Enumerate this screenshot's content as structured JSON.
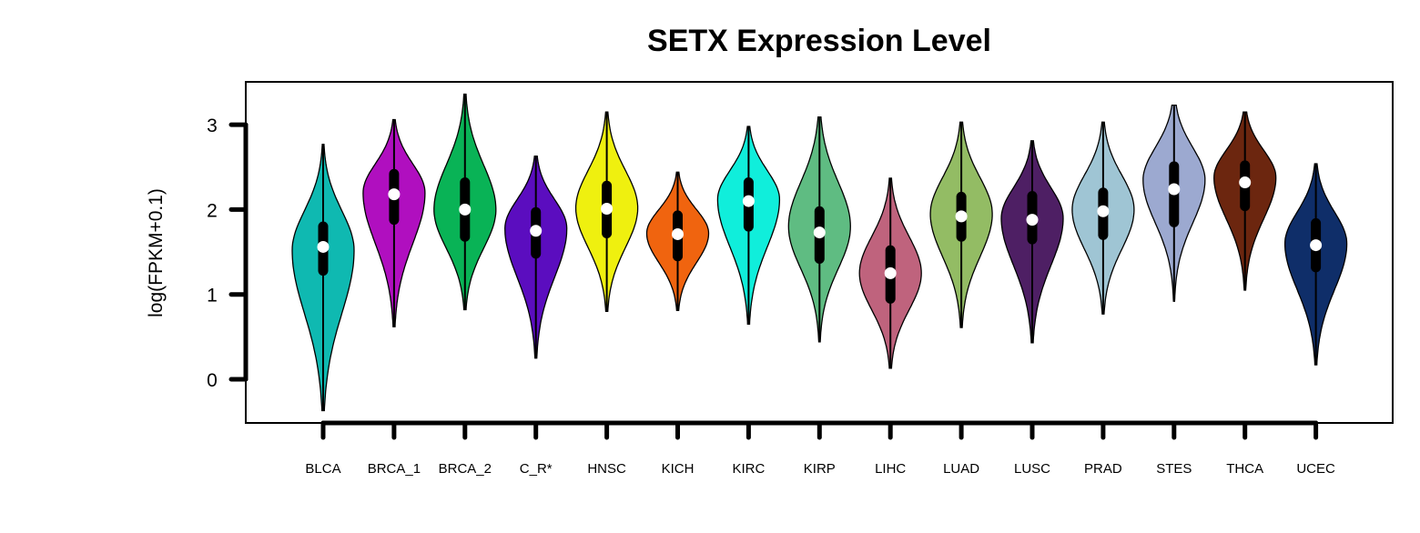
{
  "chart_data": {
    "type": "violin",
    "title": "SETX Expression Level",
    "xlabel": "",
    "ylabel": "log(FPKM+0.1)",
    "ylim": [
      -0.5,
      3.5
    ],
    "yticks": [
      "0",
      "1",
      "2",
      "3"
    ],
    "grid": false,
    "legend": "none",
    "series": [
      {
        "category": "BLCA",
        "color": "#0FB9B1",
        "min": -0.37,
        "q1": 1.28,
        "median": 1.56,
        "q3": 1.8,
        "max": 2.77,
        "mode": 1.52
      },
      {
        "category": "BRCA_1",
        "color": "#B00FBF",
        "min": 0.62,
        "q1": 1.88,
        "median": 2.18,
        "q3": 2.42,
        "max": 3.06,
        "mode": 2.2
      },
      {
        "category": "BRCA_2",
        "color": "#09B356",
        "min": 0.82,
        "q1": 1.68,
        "median": 2.0,
        "q3": 2.32,
        "max": 3.36,
        "mode": 2.0
      },
      {
        "category": "C_R*",
        "color": "#5B0DBF",
        "min": 0.25,
        "q1": 1.48,
        "median": 1.75,
        "q3": 1.97,
        "max": 2.63,
        "mode": 1.78
      },
      {
        "category": "HNSC",
        "color": "#EFF00F",
        "min": 0.8,
        "q1": 1.72,
        "median": 2.01,
        "q3": 2.28,
        "max": 3.15,
        "mode": 2.02
      },
      {
        "category": "KICH",
        "color": "#F0640F",
        "min": 0.81,
        "q1": 1.45,
        "median": 1.71,
        "q3": 1.93,
        "max": 2.44,
        "mode": 1.72
      },
      {
        "category": "KIRC",
        "color": "#10EEDB",
        "min": 0.65,
        "q1": 1.8,
        "median": 2.1,
        "q3": 2.32,
        "max": 2.98,
        "mode": 2.12
      },
      {
        "category": "KIRP",
        "color": "#5FBC82",
        "min": 0.44,
        "q1": 1.42,
        "median": 1.73,
        "q3": 1.98,
        "max": 3.09,
        "mode": 1.8
      },
      {
        "category": "LIHC",
        "color": "#BF637D",
        "min": 0.13,
        "q1": 0.95,
        "median": 1.25,
        "q3": 1.52,
        "max": 2.37,
        "mode": 1.25
      },
      {
        "category": "LUAD",
        "color": "#93BC64",
        "min": 0.61,
        "q1": 1.68,
        "median": 1.92,
        "q3": 2.15,
        "max": 3.03,
        "mode": 1.95
      },
      {
        "category": "LUSC",
        "color": "#4E1F64",
        "min": 0.43,
        "q1": 1.65,
        "median": 1.88,
        "q3": 2.16,
        "max": 2.81,
        "mode": 1.9
      },
      {
        "category": "PRAD",
        "color": "#9FC5D4",
        "min": 0.77,
        "q1": 1.7,
        "median": 1.98,
        "q3": 2.2,
        "max": 3.03,
        "mode": 2.0
      },
      {
        "category": "STES",
        "color": "#9CA9D0",
        "min": 0.92,
        "q1": 1.85,
        "median": 2.24,
        "q3": 2.51,
        "max": 3.23,
        "mode": 2.35
      },
      {
        "category": "THCA",
        "color": "#6C260F",
        "min": 1.05,
        "q1": 2.04,
        "median": 2.32,
        "q3": 2.52,
        "max": 3.15,
        "mode": 2.38
      },
      {
        "category": "UCEC",
        "color": "#0F2E69",
        "min": 0.17,
        "q1": 1.32,
        "median": 1.58,
        "q3": 1.84,
        "max": 2.54,
        "mode": 1.6
      }
    ]
  }
}
